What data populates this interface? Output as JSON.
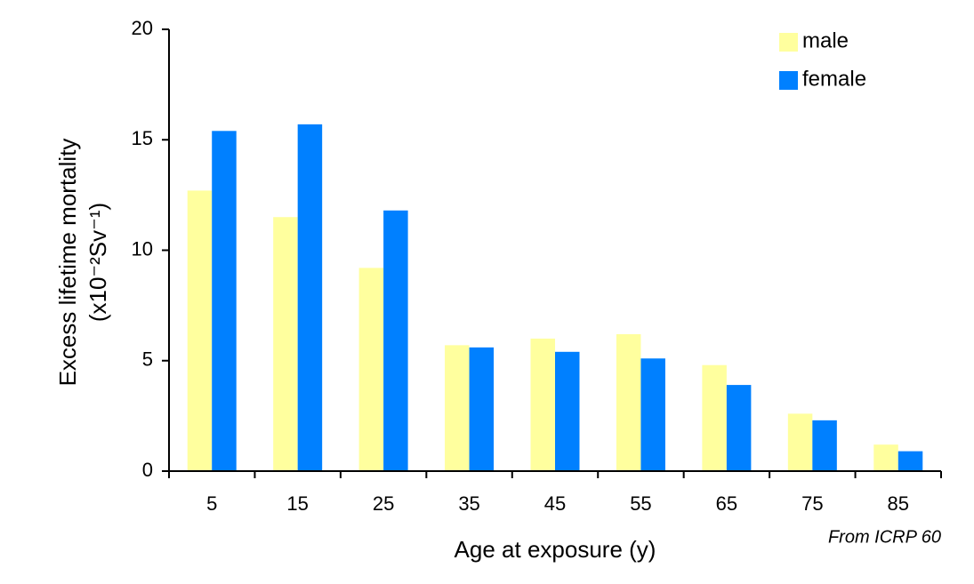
{
  "chart_data": {
    "type": "bar",
    "x_label": "Age at exposure (y)",
    "y_label": [
      "Excess lifetime mortality",
      "(x10⁻²Sv⁻¹)"
    ],
    "annotation": "From ICRP 60",
    "categories": [
      "5",
      "15",
      "25",
      "35",
      "45",
      "55",
      "65",
      "75",
      "85"
    ],
    "series": [
      {
        "name": "male",
        "color": "#ffff9e",
        "values": [
          12.7,
          11.5,
          9.2,
          5.7,
          6.0,
          6.2,
          4.8,
          2.6,
          1.2
        ]
      },
      {
        "name": "female",
        "color": "#0080ff",
        "values": [
          15.4,
          15.7,
          11.8,
          5.6,
          5.4,
          5.1,
          3.9,
          2.3,
          0.9
        ]
      }
    ],
    "ylim": [
      0,
      20
    ],
    "yticks": [
      0,
      5,
      10,
      15,
      20
    ],
    "grid": false,
    "legend": "top-right"
  }
}
